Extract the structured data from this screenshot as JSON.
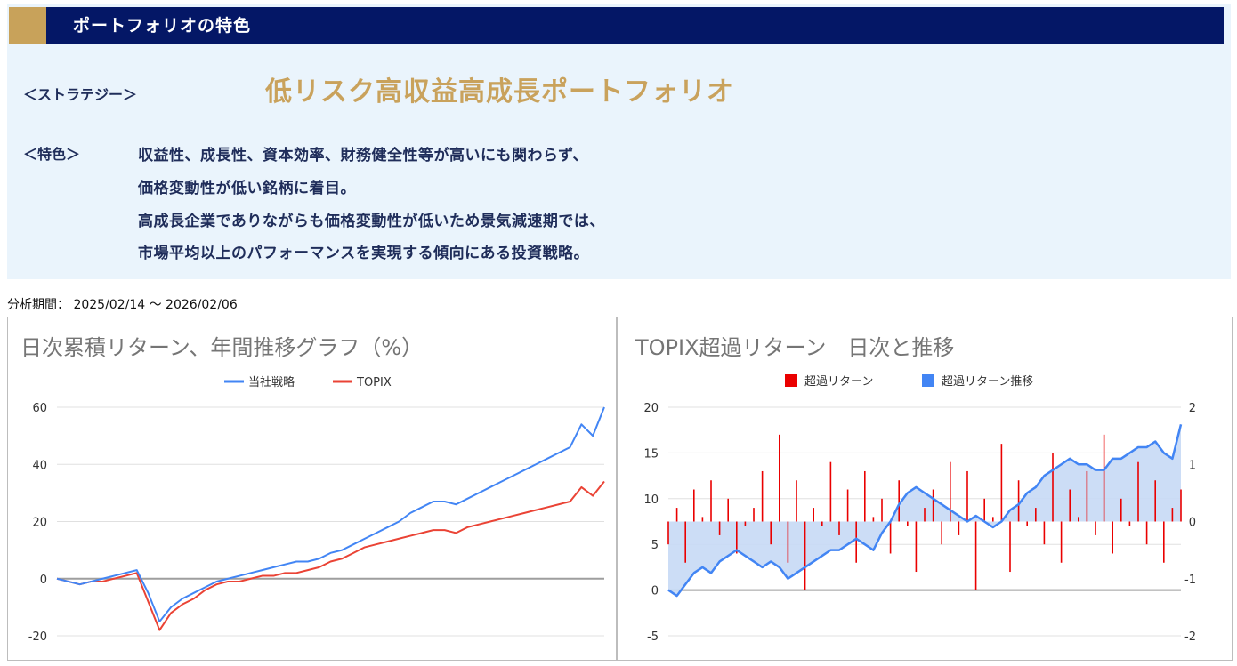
{
  "header": {
    "title": "ポートフォリオの特色"
  },
  "strategy": {
    "label": "＜ストラテジー＞",
    "value": "低リスク高収益高成長ポートフォリオ"
  },
  "features": {
    "label": "＜特色＞",
    "lines": [
      "収益性、成長性、資本効率、財務健全性等が高いにも関わらず、",
      "価格変動性が低い銘柄に着目。",
      "高成長企業でありながらも価格変動性が低いため景気減速期では、",
      "市場平均以上のパフォーマンスを実現する傾向にある投資戦略。"
    ]
  },
  "period": "分析期間： 2025/02/14 ～ 2026/02/06",
  "colors": {
    "navy": "#041766",
    "gold": "#c9a25c",
    "panel": "#eaf4fc",
    "blue": "#4285f4",
    "red": "#ea4335",
    "area": "#c6d9f5"
  },
  "chart_data": [
    {
      "type": "line",
      "title": "日次累積リターン、年間推移グラフ（%）",
      "legend_position": "top",
      "grid": true,
      "ylim": [
        -20,
        60
      ],
      "yticks": [
        "60",
        "40",
        "20",
        "0",
        "-20"
      ],
      "x_index_range": [
        0,
        48
      ],
      "series": [
        {
          "name": "当社戦略",
          "color": "#4285f4",
          "values": [
            0,
            -1,
            -2,
            -1,
            0,
            1,
            2,
            3,
            -5,
            -15,
            -10,
            -7,
            -5,
            -3,
            -1,
            0,
            1,
            2,
            3,
            4,
            5,
            6,
            6,
            7,
            9,
            10,
            12,
            14,
            16,
            18,
            20,
            23,
            25,
            27,
            27,
            26,
            28,
            30,
            32,
            34,
            36,
            38,
            40,
            42,
            44,
            46,
            54,
            50,
            60
          ]
        },
        {
          "name": "TOPIX",
          "color": "#ea4335",
          "values": [
            0,
            -1,
            -2,
            -1,
            -1,
            0,
            1,
            2,
            -8,
            -18,
            -12,
            -9,
            -7,
            -4,
            -2,
            -1,
            -1,
            0,
            1,
            1,
            2,
            2,
            3,
            4,
            6,
            7,
            9,
            11,
            12,
            13,
            14,
            15,
            16,
            17,
            17,
            16,
            18,
            19,
            20,
            21,
            22,
            23,
            24,
            25,
            26,
            27,
            32,
            29,
            34
          ]
        }
      ]
    },
    {
      "type": "bar+area",
      "title": "TOPIX超過リターン　日次と推移",
      "legend_position": "top",
      "grid": true,
      "ylim_left": [
        -5,
        20
      ],
      "ylim_right": [
        -2,
        2
      ],
      "yticks_left": [
        "20",
        "15",
        "10",
        "5",
        "0",
        "-5"
      ],
      "yticks_right": [
        "2",
        "1",
        "0",
        "-1",
        "-2"
      ],
      "x_index_range": [
        0,
        60
      ],
      "series": [
        {
          "name": "超過リターン",
          "color": "#ea0000",
          "axis": "left",
          "values": [
            5,
            9,
            3,
            11,
            8,
            12,
            6,
            10,
            4,
            7,
            9,
            13,
            5,
            17,
            3,
            12,
            0,
            9,
            7,
            14,
            6,
            11,
            3,
            13,
            8,
            10,
            4,
            12,
            7,
            2,
            9,
            11,
            5,
            14,
            6,
            13,
            0,
            10,
            8,
            16,
            2,
            12,
            7,
            9,
            5,
            15,
            3,
            11,
            8,
            13,
            6,
            17,
            4,
            10,
            7,
            14,
            5,
            12,
            3,
            9,
            11
          ]
        },
        {
          "name": "超過リターン推移",
          "color": "#4285f4",
          "axis": "right",
          "values": [
            -1.2,
            -1.3,
            -1.1,
            -0.9,
            -0.8,
            -0.9,
            -0.7,
            -0.6,
            -0.5,
            -0.6,
            -0.7,
            -0.8,
            -0.7,
            -0.8,
            -1.0,
            -0.9,
            -0.8,
            -0.7,
            -0.6,
            -0.5,
            -0.5,
            -0.4,
            -0.3,
            -0.4,
            -0.5,
            -0.2,
            0.0,
            0.3,
            0.5,
            0.6,
            0.5,
            0.4,
            0.3,
            0.2,
            0.1,
            0.0,
            0.1,
            0.0,
            -0.1,
            0.0,
            0.2,
            0.3,
            0.5,
            0.6,
            0.8,
            0.9,
            1.0,
            1.1,
            1.0,
            1.0,
            0.9,
            0.9,
            1.1,
            1.1,
            1.2,
            1.3,
            1.3,
            1.4,
            1.2,
            1.1,
            1.7
          ]
        }
      ]
    }
  ]
}
